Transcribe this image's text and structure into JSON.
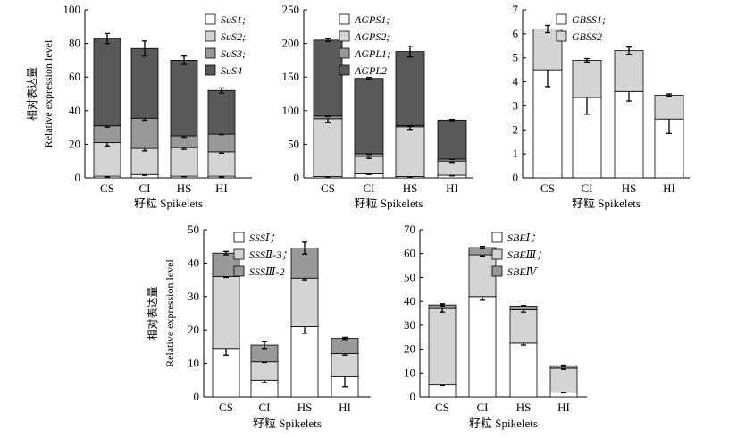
{
  "figure": {
    "width": 844,
    "height": 490,
    "ylabel_cn": "相对表达量",
    "ylabel_en": "Relative expression level",
    "xlabel": "籽粒 Spikelets"
  },
  "colors": {
    "white": "#ffffff",
    "light": "#d4d4d4",
    "mid": "#999999",
    "dark": "#595959",
    "axis": "#000000"
  },
  "chart_data": [
    {
      "type": "bar",
      "stacked": true,
      "title": "",
      "categories": [
        "CS",
        "CI",
        "HS",
        "HI"
      ],
      "xlabel": "籽粒 Spikelets",
      "ylabel": "相对表达量 Relative expression level",
      "ylim": [
        0,
        100
      ],
      "yticks": [
        0,
        20,
        40,
        60,
        80,
        100
      ],
      "legend_position": "top-right",
      "series": [
        {
          "name": "SuS1;",
          "color": "white",
          "values": [
            1.0,
            2.0,
            1.0,
            1.0
          ],
          "errors": [
            0.5,
            0.5,
            0.3,
            0.5
          ]
        },
        {
          "name": "SuS2;",
          "color": "light",
          "values": [
            20.0,
            15.5,
            17.0,
            14.5
          ],
          "errors": [
            2.0,
            1.5,
            1.0,
            0.8
          ]
        },
        {
          "name": "SuS3;",
          "color": "mid",
          "values": [
            10.0,
            18.0,
            7.0,
            10.5
          ],
          "errors": [
            0.8,
            1.2,
            0.8,
            0.3
          ]
        },
        {
          "name": "SuS4",
          "color": "dark",
          "values": [
            52.0,
            41.5,
            45.0,
            26.0
          ],
          "errors": [
            3.0,
            4.5,
            2.5,
            1.5
          ]
        }
      ]
    },
    {
      "type": "bar",
      "stacked": true,
      "title": "",
      "categories": [
        "CS",
        "CI",
        "HS",
        "HI"
      ],
      "xlabel": "籽粒 Spikelets",
      "ylabel": "",
      "ylim": [
        0,
        250
      ],
      "yticks": [
        0,
        50,
        100,
        150,
        200,
        250
      ],
      "legend_position": "top-right",
      "series": [
        {
          "name": "AGPS1;",
          "color": "white",
          "values": [
            2.0,
            6.0,
            2.0,
            4.0
          ],
          "errors": [
            0.5,
            1.0,
            0.5,
            1.0
          ]
        },
        {
          "name": "AGPS2;",
          "color": "light",
          "values": [
            86.0,
            26.0,
            74.0,
            21.0
          ],
          "errors": [
            6.0,
            3.0,
            4.0,
            2.0
          ]
        },
        {
          "name": "AGPL1;",
          "color": "mid",
          "values": [
            4.0,
            4.0,
            2.0,
            3.0
          ],
          "errors": [
            1.0,
            1.0,
            1.0,
            0.5
          ]
        },
        {
          "name": "AGPL2",
          "color": "dark",
          "values": [
            113.0,
            112.0,
            110.0,
            58.0
          ],
          "errors": [
            2.0,
            1.5,
            8.0,
            1.0
          ]
        }
      ]
    },
    {
      "type": "bar",
      "stacked": true,
      "title": "",
      "categories": [
        "CS",
        "CI",
        "HS",
        "HI"
      ],
      "xlabel": "籽粒 Spikelets",
      "ylabel": "",
      "ylim": [
        0,
        7
      ],
      "yticks": [
        0,
        1,
        2,
        3,
        4,
        5,
        6,
        7
      ],
      "legend_position": "top-right",
      "series": [
        {
          "name": "GBSS1;",
          "color": "white",
          "values": [
            4.5,
            3.35,
            3.6,
            2.45
          ],
          "errors": [
            0.7,
            0.7,
            0.4,
            0.6
          ]
        },
        {
          "name": "GBSS2",
          "color": "light",
          "values": [
            1.7,
            1.55,
            1.7,
            1.0
          ],
          "errors": [
            0.15,
            0.07,
            0.15,
            0.05
          ]
        }
      ]
    },
    {
      "type": "bar",
      "stacked": true,
      "title": "",
      "categories": [
        "CS",
        "CI",
        "HS",
        "HI"
      ],
      "xlabel": "籽粒 Spikelets",
      "ylabel": "相对表达量 Relative expression level",
      "ylim": [
        0,
        50
      ],
      "yticks": [
        0,
        10,
        20,
        30,
        40,
        50
      ],
      "legend_position": "top-right",
      "series": [
        {
          "name": "SSSⅠ；",
          "color": "white",
          "values": [
            14.5,
            5.0,
            21.0,
            6.0
          ],
          "errors": [
            2.0,
            0.7,
            2.0,
            3.0
          ]
        },
        {
          "name": "SSSⅡ-3；",
          "color": "light",
          "values": [
            21.5,
            5.5,
            14.5,
            7.0
          ],
          "errors": [
            0.3,
            0.2,
            0.5,
            0.5
          ]
        },
        {
          "name": "SSSⅢ-2",
          "color": "mid",
          "values": [
            7.0,
            5.0,
            9.0,
            4.5
          ],
          "errors": [
            0.5,
            1.0,
            1.8,
            0.3
          ]
        }
      ]
    },
    {
      "type": "bar",
      "stacked": true,
      "title": "",
      "categories": [
        "CS",
        "CI",
        "HS",
        "HI"
      ],
      "xlabel": "籽粒 Spikelets",
      "ylabel": "",
      "ylim": [
        0,
        70
      ],
      "yticks": [
        0,
        10,
        20,
        30,
        40,
        50,
        60,
        70
      ],
      "legend_position": "top-right",
      "series": [
        {
          "name": "SBEⅠ；",
          "color": "white",
          "values": [
            5.0,
            42.0,
            22.5,
            2.0
          ],
          "errors": [
            0.3,
            1.5,
            0.8,
            0.3
          ]
        },
        {
          "name": "SBEⅢ；",
          "color": "light",
          "values": [
            32.0,
            17.5,
            14.0,
            10.0
          ],
          "errors": [
            1.5,
            0.5,
            1.0,
            0.5
          ]
        },
        {
          "name": "SBEⅣ",
          "color": "mid",
          "values": [
            1.5,
            3.0,
            1.5,
            1.0
          ],
          "errors": [
            0.5,
            0.5,
            0.3,
            0.3
          ]
        }
      ]
    }
  ]
}
